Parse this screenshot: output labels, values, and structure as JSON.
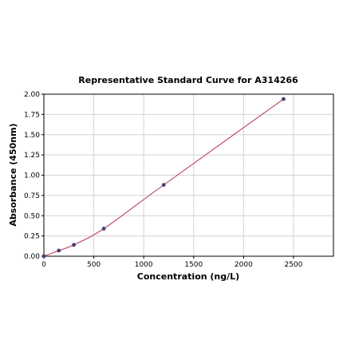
{
  "chart_data": {
    "type": "scatter",
    "title": "Representative Standard Curve for A314266",
    "xlabel": "Concentration (ng/L)",
    "ylabel": "Absorbance (450nm)",
    "xlim": [
      0,
      2900
    ],
    "ylim": [
      0,
      2.0
    ],
    "xticks": [
      "0",
      "500",
      "1000",
      "1500",
      "2000",
      "2500"
    ],
    "yticks": [
      "0.00",
      "0.25",
      "0.50",
      "0.75",
      "1.00",
      "1.25",
      "1.50",
      "1.75",
      "2.00"
    ],
    "grid": true,
    "series": [
      {
        "points": [
          {
            "x": 0,
            "y": 0.0
          },
          {
            "x": 150,
            "y": 0.07
          },
          {
            "x": 300,
            "y": 0.14
          },
          {
            "x": 600,
            "y": 0.34
          },
          {
            "x": 1200,
            "y": 0.88
          },
          {
            "x": 2400,
            "y": 1.94
          }
        ],
        "fit_curve": true
      }
    ],
    "colors": {
      "point": "#4b3f72",
      "curve": "#c0506a",
      "grid": "#d3d3d3",
      "frame": "#000000"
    }
  }
}
